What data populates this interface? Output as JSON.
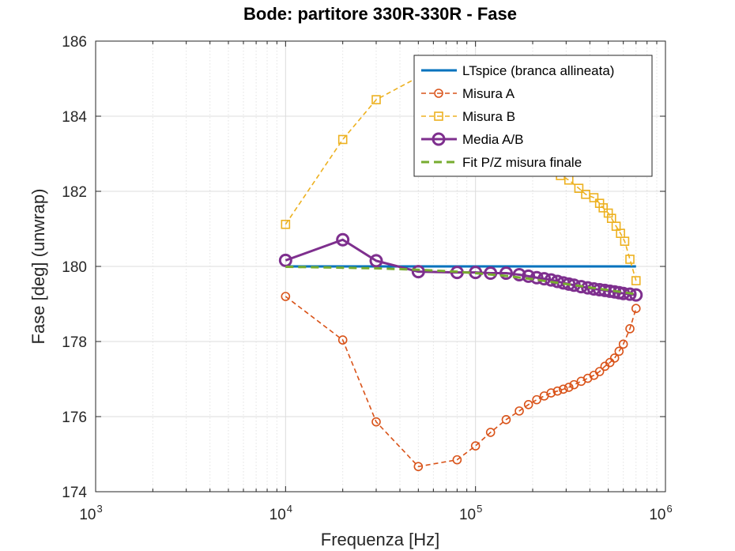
{
  "chart_data": {
    "type": "line",
    "title": "Bode: partitore 330R-330R - Fase",
    "xlabel": "Frequenza [Hz]",
    "ylabel": "Fase [deg] (unwrap)",
    "xscale": "log",
    "xlim": [
      1000,
      1000000
    ],
    "ylim": [
      174,
      186
    ],
    "xticks": [
      {
        "value": 1000,
        "base": "10",
        "exp": "3"
      },
      {
        "value": 10000,
        "base": "10",
        "exp": "4"
      },
      {
        "value": 100000,
        "base": "10",
        "exp": "5"
      },
      {
        "value": 1000000,
        "base": "10",
        "exp": "6"
      }
    ],
    "yticks": [
      "174",
      "176",
      "178",
      "180",
      "182",
      "184",
      "186"
    ],
    "grid": true,
    "legend_position": "top-right",
    "series": [
      {
        "name": "LTspice (branca allineata)",
        "color": "#0072BD",
        "style": "solid",
        "marker": "none",
        "x": [
          10000,
          700000
        ],
        "y": [
          180.0,
          180.0
        ]
      },
      {
        "name": "Misura A",
        "color": "#D95319",
        "style": "dashed",
        "marker": "circle",
        "x": [
          10000,
          20000,
          30000,
          50000,
          80000,
          100000,
          120000,
          145000,
          170000,
          190000,
          210000,
          230000,
          250000,
          270000,
          290000,
          310000,
          330000,
          360000,
          390000,
          420000,
          450000,
          480000,
          510000,
          540000,
          570000,
          600000,
          650000,
          700000
        ],
        "y": [
          179.2,
          178.04,
          175.86,
          174.67,
          174.85,
          175.22,
          175.58,
          175.92,
          176.15,
          176.32,
          176.45,
          176.55,
          176.63,
          176.68,
          176.73,
          176.78,
          176.85,
          176.94,
          177.02,
          177.1,
          177.2,
          177.34,
          177.44,
          177.56,
          177.74,
          177.93,
          178.34,
          178.88
        ]
      },
      {
        "name": "Misura B",
        "color": "#EDB120",
        "style": "dashed",
        "marker": "square",
        "x": [
          10000,
          20000,
          30000,
          50000,
          280000,
          310000,
          350000,
          380000,
          420000,
          450000,
          470000,
          500000,
          520000,
          550000,
          580000,
          610000,
          650000,
          700000
        ],
        "y": [
          181.12,
          183.38,
          184.44,
          185.04,
          182.42,
          182.3,
          182.08,
          181.92,
          181.83,
          181.68,
          181.56,
          181.42,
          181.28,
          181.07,
          180.88,
          180.67,
          180.19,
          179.62
        ]
      },
      {
        "name": "Media A/B",
        "color": "#7E2F8E",
        "style": "solid",
        "marker": "circle",
        "x": [
          10000,
          20000,
          30000,
          50000,
          80000,
          100000,
          120000,
          145000,
          170000,
          190000,
          210000,
          230000,
          250000,
          270000,
          290000,
          310000,
          330000,
          360000,
          390000,
          420000,
          450000,
          480000,
          510000,
          540000,
          570000,
          600000,
          650000,
          700000
        ],
        "y": [
          180.16,
          180.71,
          180.15,
          179.86,
          179.84,
          179.84,
          179.82,
          179.82,
          179.78,
          179.74,
          179.7,
          179.67,
          179.64,
          179.6,
          179.56,
          179.53,
          179.5,
          179.46,
          179.43,
          179.4,
          179.38,
          179.36,
          179.34,
          179.32,
          179.3,
          179.28,
          179.26,
          179.24
        ]
      },
      {
        "name": "Fit P/Z misura finale",
        "color": "#77AC30",
        "style": "dashed",
        "marker": "none",
        "x": [
          10000,
          30000,
          50000,
          80000,
          100000,
          150000,
          200000,
          300000,
          400000,
          500000,
          600000,
          700000
        ],
        "y": [
          179.99,
          179.95,
          179.91,
          179.86,
          179.82,
          179.74,
          179.66,
          179.53,
          179.44,
          179.37,
          179.31,
          179.26
        ]
      }
    ]
  }
}
